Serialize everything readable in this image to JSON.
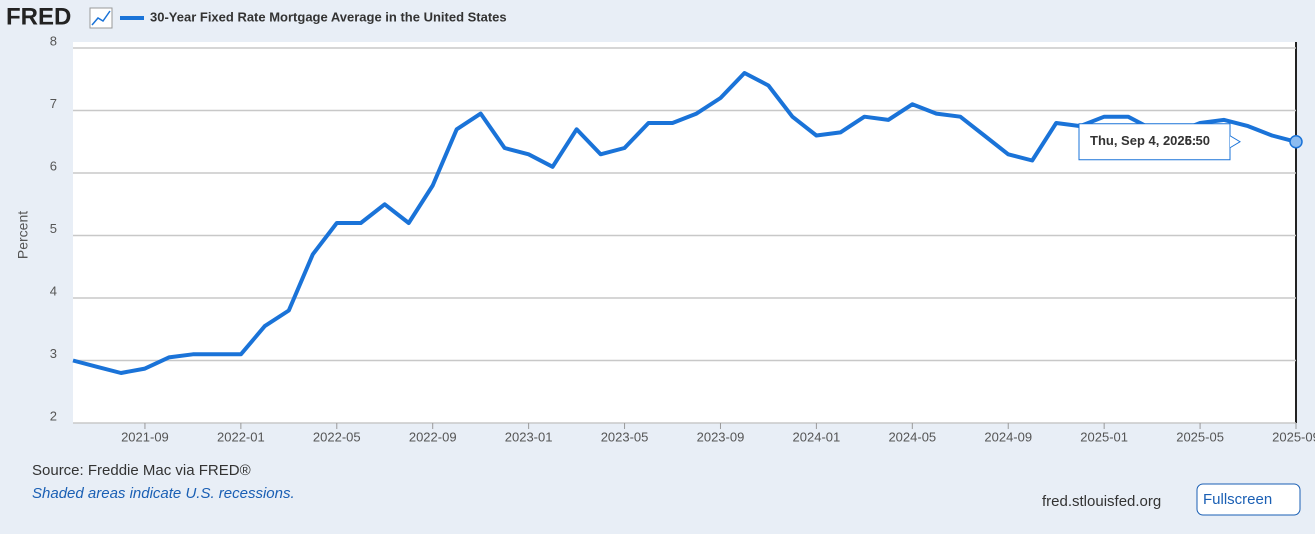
{
  "header": {
    "logo": "FRED"
  },
  "chart_data": {
    "type": "line",
    "y_label": "Percent",
    "x": [
      "2021-06",
      "2021-07",
      "2021-08",
      "2021-09",
      "2021-10",
      "2021-11",
      "2021-12",
      "2022-01",
      "2022-02",
      "2022-03",
      "2022-04",
      "2022-05",
      "2022-06",
      "2022-07",
      "2022-08",
      "2022-09",
      "2022-10",
      "2022-11",
      "2022-12",
      "2023-01",
      "2023-02",
      "2023-03",
      "2023-04",
      "2023-05",
      "2023-06",
      "2023-07",
      "2023-08",
      "2023-09",
      "2023-10",
      "2023-11",
      "2023-12",
      "2024-01",
      "2024-02",
      "2024-03",
      "2024-04",
      "2024-05",
      "2024-06",
      "2024-07",
      "2024-08",
      "2024-09",
      "2024-10",
      "2024-11",
      "2024-12",
      "2025-01",
      "2025-02",
      "2025-03",
      "2025-04",
      "2025-05",
      "2025-06",
      "2025-07",
      "2025-08",
      "2025-09"
    ],
    "series": [
      {
        "name": "30-Year Fixed Rate Mortgage Average in the United States",
        "color": "#1a73d8",
        "values": [
          3.0,
          2.9,
          2.8,
          2.87,
          3.05,
          3.1,
          3.1,
          3.1,
          3.55,
          3.8,
          4.7,
          5.2,
          5.2,
          5.5,
          5.2,
          5.8,
          6.7,
          6.95,
          6.4,
          6.3,
          6.1,
          6.7,
          6.3,
          6.4,
          6.8,
          6.8,
          6.95,
          7.2,
          7.6,
          7.4,
          6.9,
          6.6,
          6.65,
          6.9,
          6.85,
          7.1,
          6.95,
          6.9,
          6.6,
          6.3,
          6.2,
          6.8,
          6.75,
          6.9,
          6.9,
          6.7,
          6.65,
          6.8,
          6.85,
          6.75,
          6.6,
          6.5
        ]
      }
    ],
    "xlim": [
      "2021-06",
      "2025-09"
    ],
    "xticks": [
      "2021-09",
      "2022-01",
      "2022-05",
      "2022-09",
      "2023-01",
      "2023-05",
      "2023-09",
      "2024-01",
      "2024-05",
      "2024-09",
      "2025-01",
      "2025-05",
      "2025-09"
    ],
    "ylim": [
      2,
      8
    ],
    "yticks": [
      2,
      3,
      4,
      5,
      6,
      7,
      8
    ],
    "grid": true,
    "tooltip": {
      "date_label": "Thu, Sep 4, 2025:",
      "value": 6.5,
      "value_label": "6.50"
    }
  },
  "footer": {
    "source": "Source: Freddie Mac via FRED®",
    "note": "Shaded areas indicate U.S. recessions.",
    "site": "fred.stlouisfed.org",
    "button": "Fullscreen"
  }
}
